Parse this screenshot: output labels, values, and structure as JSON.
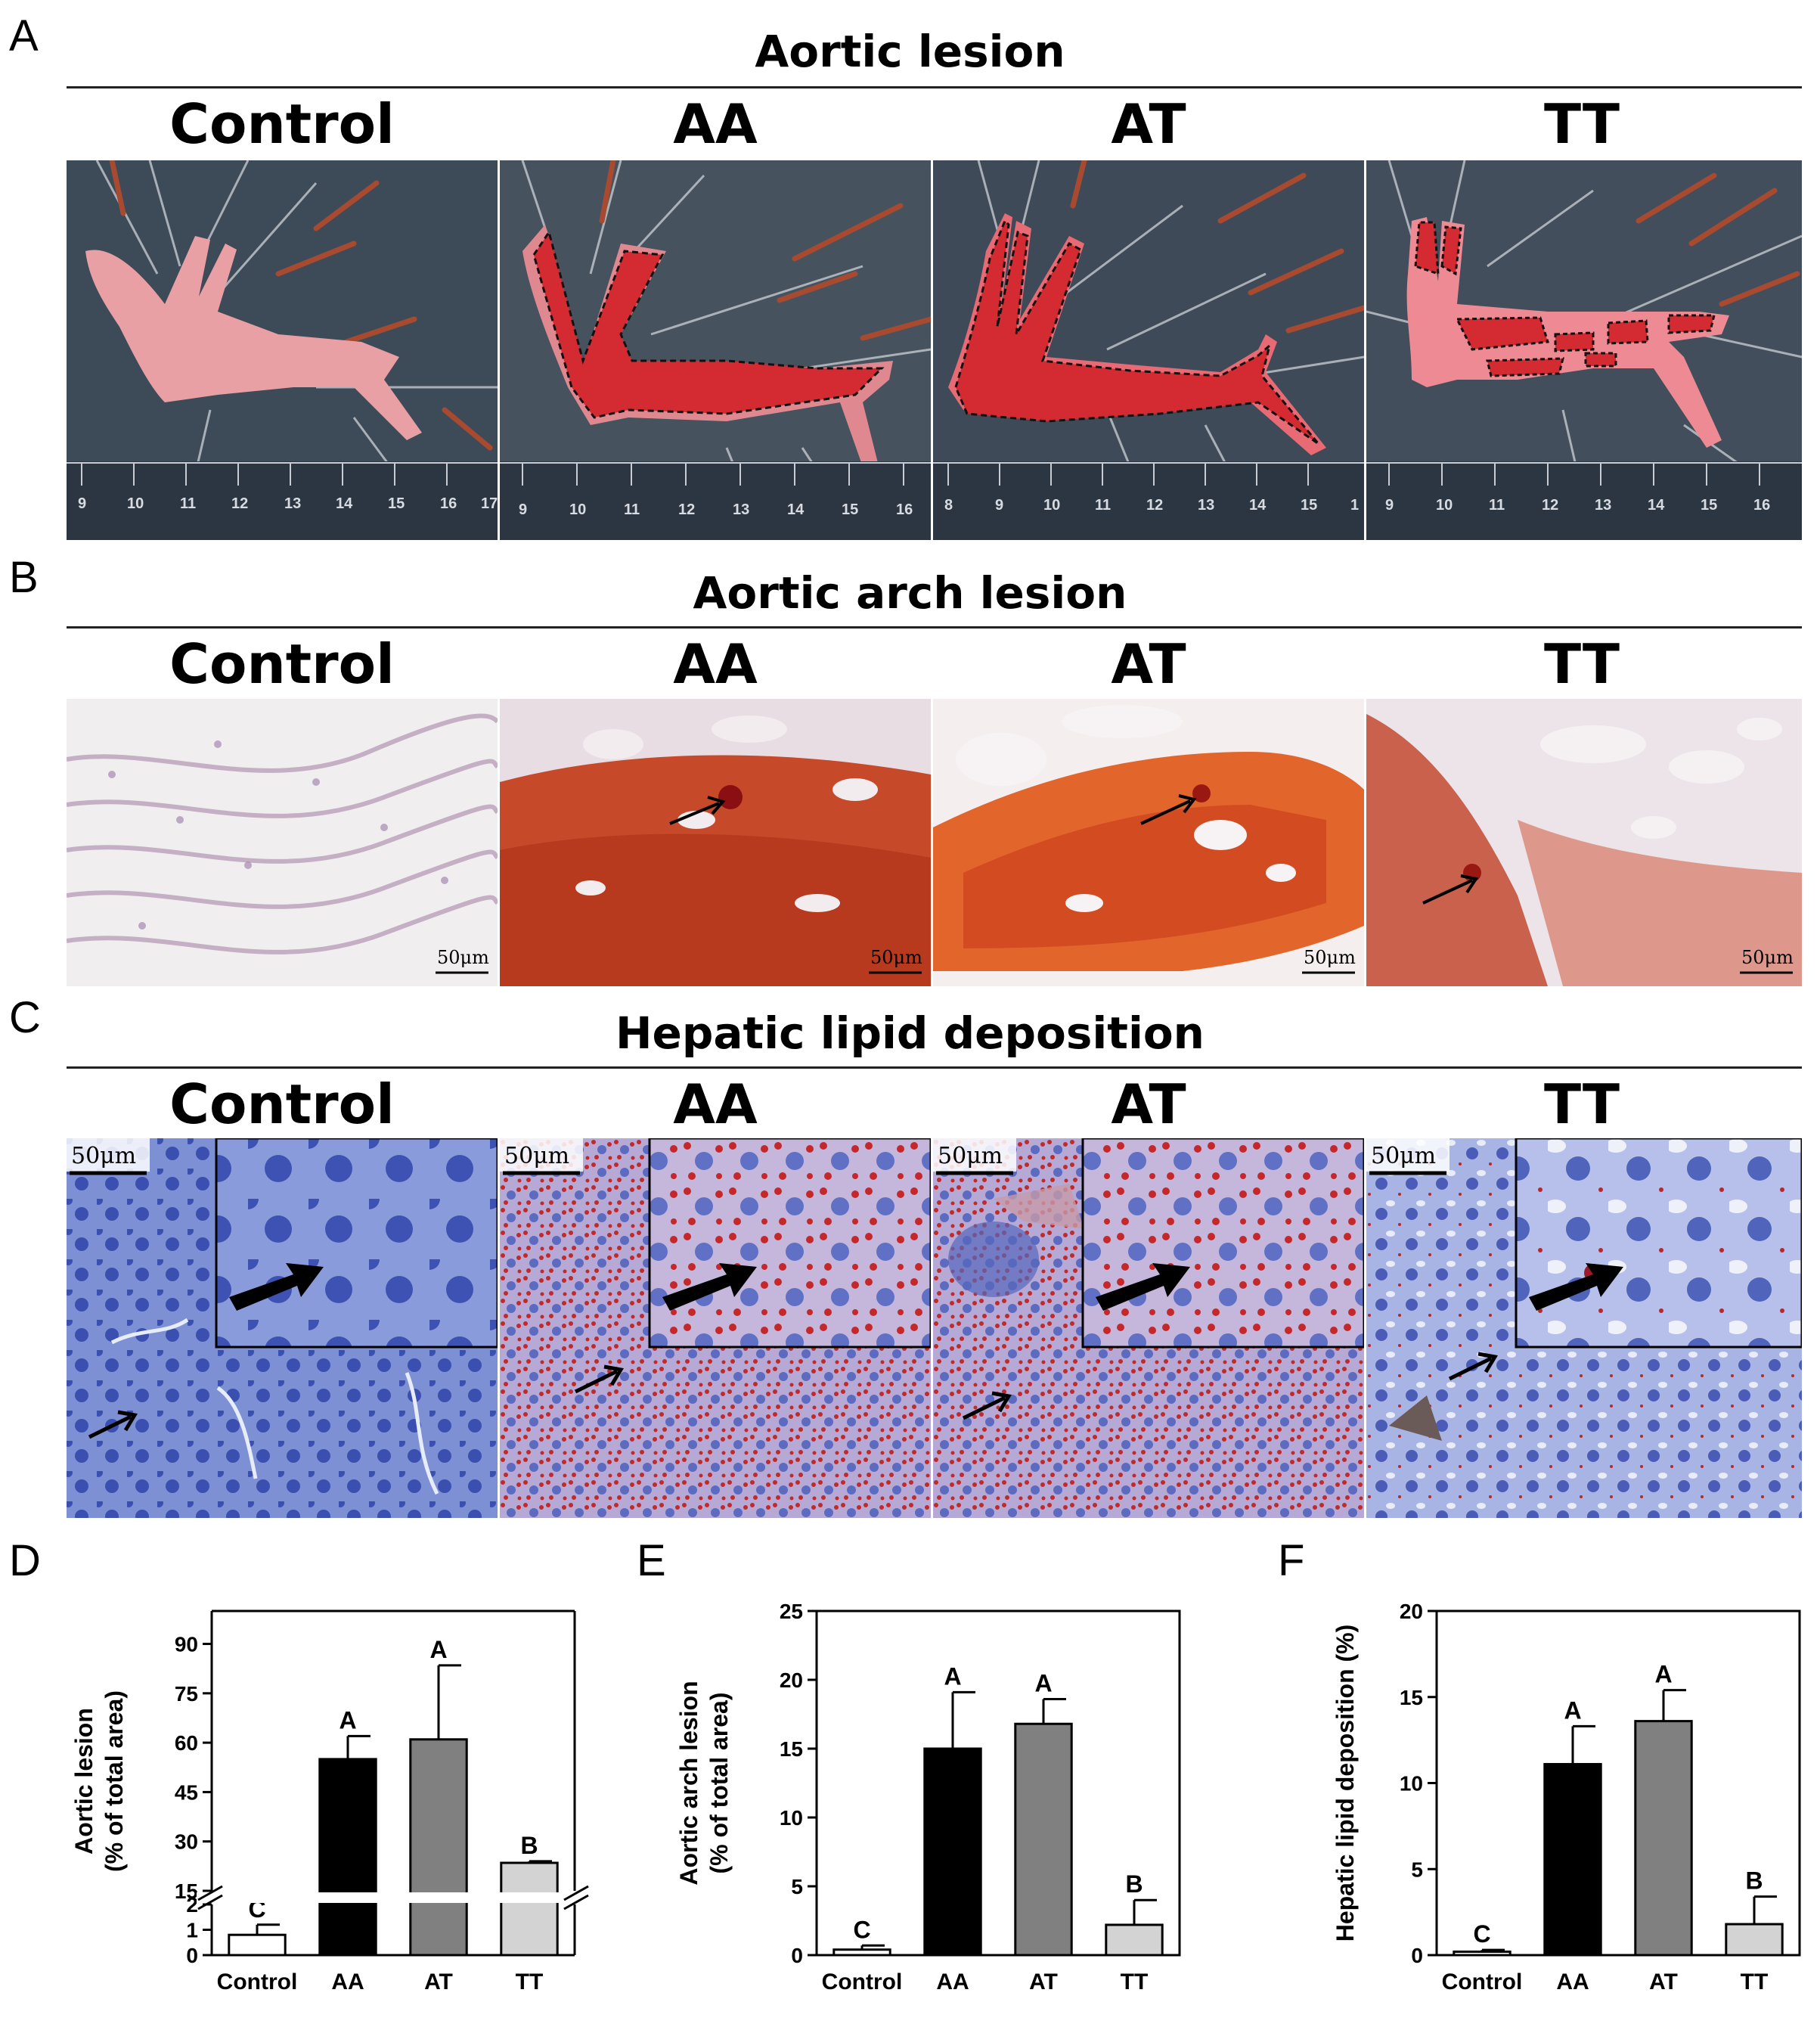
{
  "panels": {
    "A": {
      "letter": "A",
      "title": "Aortic lesion"
    },
    "B": {
      "letter": "B",
      "title": "Aortic arch lesion"
    },
    "C": {
      "letter": "C",
      "title": "Hepatic lipid deposition"
    },
    "D": {
      "letter": "D"
    },
    "E": {
      "letter": "E"
    },
    "F": {
      "letter": "F"
    }
  },
  "groups": [
    "Control",
    "AA",
    "AT",
    "TT"
  ],
  "scale_label": "50μm",
  "ruler": {
    "control": [
      "9",
      "10",
      "11",
      "12",
      "13",
      "14",
      "15",
      "16",
      "17"
    ],
    "aa": [
      "9",
      "10",
      "11",
      "12",
      "13",
      "14",
      "15",
      "16"
    ],
    "at": [
      "8",
      "9",
      "10",
      "11",
      "12",
      "13",
      "14",
      "15",
      "1"
    ],
    "tt": [
      "9",
      "10",
      "11",
      "12",
      "13",
      "14",
      "15",
      "16"
    ]
  },
  "colors": {
    "photo_bg": "#3d4a57",
    "aorta": "#e8a0a4",
    "lesion": "#d42a32",
    "stain_red": "#c6361d",
    "tissue_bg": "#efe8e8",
    "hepato_blue": "#5a6fc2",
    "bar_control": "#ffffff",
    "bar_AA": "#000000",
    "bar_AT": "#808080",
    "bar_TT": "#d3d3d3"
  },
  "chart_data": [
    {
      "type": "bar",
      "panel": "D",
      "categories": [
        "Control",
        "AA",
        "AT",
        "TT"
      ],
      "values": [
        0.8,
        55,
        61,
        23.5
      ],
      "errors": [
        0.4,
        7,
        22.5,
        0.5
      ],
      "letters": [
        "C",
        "A",
        "A",
        "B"
      ],
      "ylabel_line1": "Aortic  lesion",
      "ylabel_line2": "(% of total area)",
      "broken_axis": true,
      "lower_range": [
        0,
        2
      ],
      "lower_ticks": [
        "0",
        "1",
        "2"
      ],
      "upper_range": [
        15,
        100
      ],
      "upper_ticks": [
        "15",
        "30",
        "45",
        "60",
        "75",
        "90"
      ]
    },
    {
      "type": "bar",
      "panel": "E",
      "categories": [
        "Control",
        "AA",
        "AT",
        "TT"
      ],
      "values": [
        0.4,
        15.0,
        16.8,
        2.2
      ],
      "errors": [
        0.3,
        4.1,
        1.8,
        1.8
      ],
      "letters": [
        "C",
        "A",
        "A",
        "B"
      ],
      "ylabel_line1": "Aortic arch lesion",
      "ylabel_line2": "(% of total area)",
      "ylim": [
        0,
        25
      ],
      "ticks": [
        "0",
        "5",
        "10",
        "15",
        "20",
        "25"
      ]
    },
    {
      "type": "bar",
      "panel": "F",
      "categories": [
        "Control",
        "AA",
        "AT",
        "TT"
      ],
      "values": [
        0.2,
        11.1,
        13.6,
        1.8
      ],
      "errors": [
        0.1,
        2.2,
        1.8,
        1.6
      ],
      "letters": [
        "C",
        "A",
        "A",
        "B"
      ],
      "ylabel_line1": "Hepatic lipid deposition (%)",
      "ylabel_line2": "",
      "ylim": [
        0,
        20
      ],
      "ticks": [
        "0",
        "5",
        "10",
        "15",
        "20"
      ]
    }
  ]
}
